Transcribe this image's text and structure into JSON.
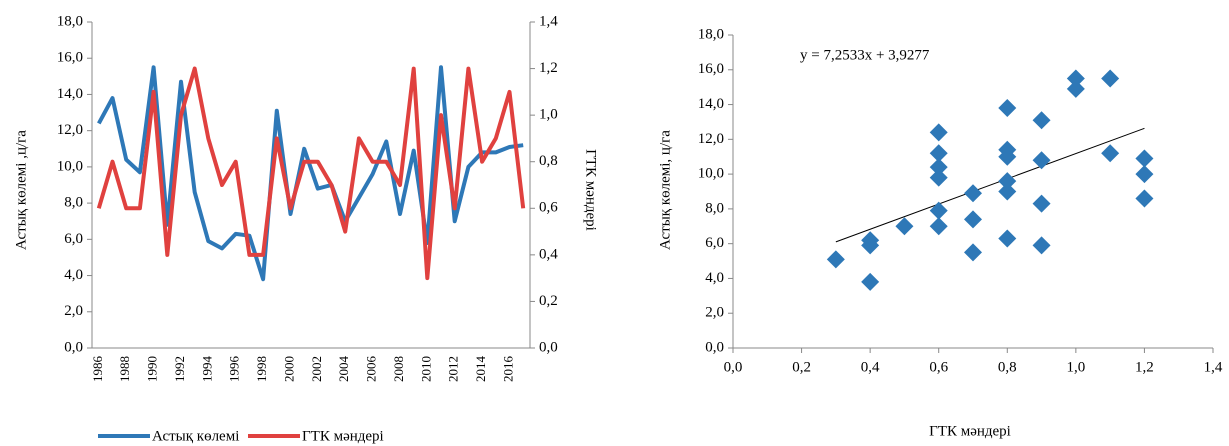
{
  "chart_data": [
    {
      "type": "line",
      "categories": [
        "1986",
        null,
        "1988",
        null,
        "1990",
        null,
        "1992",
        null,
        "1994",
        null,
        "1996",
        null,
        "1998",
        null,
        "2000",
        null,
        "2002",
        null,
        "2004",
        null,
        "2006",
        null,
        "2008",
        null,
        "2010",
        null,
        "2012",
        null,
        "2014",
        null,
        "2016",
        null
      ],
      "series": [
        {
          "name": "Астық көлемі",
          "color": "#2e78b7",
          "values": [
            12.4,
            13.8,
            10.4,
            9.7,
            15.5,
            6.8,
            14.7,
            8.6,
            5.9,
            5.5,
            6.3,
            6.2,
            3.8,
            13.1,
            7.4,
            11.0,
            8.8,
            9.0,
            7.0,
            8.3,
            9.6,
            11.4,
            7.4,
            10.9,
            5.8,
            15.5,
            7.0,
            10.0,
            10.8,
            10.8,
            11.1,
            11.2
          ]
        },
        {
          "name": "ГТК мәндері",
          "color": "#e0413f",
          "axis": "y2",
          "values": [
            0.6,
            0.8,
            0.6,
            0.6,
            1.1,
            0.4,
            1.0,
            1.2,
            0.9,
            0.7,
            0.8,
            0.4,
            0.4,
            0.9,
            0.6,
            0.8,
            0.8,
            0.7,
            0.5,
            0.9,
            0.8,
            0.8,
            0.7,
            1.2,
            0.3,
            1.0,
            0.6,
            1.2,
            0.8,
            0.9,
            1.1,
            0.6
          ]
        }
      ],
      "ylim": [
        0,
        18
      ],
      "yticks": [
        {
          "value": 0,
          "label": "0,0"
        },
        {
          "value": 2,
          "label": "2,0"
        },
        {
          "value": 4,
          "label": "4,0"
        },
        {
          "value": 6,
          "label": "6,0"
        },
        {
          "value": 8,
          "label": "8,0"
        },
        {
          "value": 10,
          "label": "10,0"
        },
        {
          "value": 12,
          "label": "12,0"
        },
        {
          "value": 14,
          "label": "14,0"
        },
        {
          "value": 16,
          "label": "16,0"
        },
        {
          "value": 18,
          "label": "18,0"
        }
      ],
      "y2lim": [
        0,
        1.4
      ],
      "y2ticks": [
        {
          "value": 0,
          "label": "0,0"
        },
        {
          "value": 0.2,
          "label": "0,2"
        },
        {
          "value": 0.4,
          "label": "0,4"
        },
        {
          "value": 0.6,
          "label": "0,6"
        },
        {
          "value": 0.8,
          "label": "0,8"
        },
        {
          "value": 1,
          "label": "1,0"
        },
        {
          "value": 1.2,
          "label": "1,2"
        },
        {
          "value": 1.4,
          "label": "1,4"
        }
      ],
      "ylabel": "Астық көлемі ,ц/га",
      "y2label": "ГТК мәндері",
      "legend": "bottom"
    },
    {
      "type": "scatter",
      "x": [
        0.3,
        0.4,
        0.4,
        0.4,
        0.5,
        0.6,
        0.6,
        0.6,
        0.6,
        0.6,
        0.6,
        0.7,
        0.7,
        0.7,
        0.8,
        0.8,
        0.8,
        0.8,
        0.8,
        0.8,
        0.9,
        0.9,
        0.9,
        0.9,
        1.0,
        1.0,
        1.1,
        1.1,
        1.2,
        1.2,
        1.2
      ],
      "values": [
        5.1,
        6.2,
        5.9,
        3.8,
        7.0,
        12.4,
        11.2,
        10.4,
        9.8,
        7.9,
        7.0,
        8.9,
        7.4,
        5.5,
        13.8,
        11.4,
        11.0,
        9.6,
        9.0,
        6.3,
        13.1,
        10.8,
        8.3,
        5.9,
        15.5,
        14.9,
        15.5,
        11.2,
        10.9,
        10.0,
        8.6
      ],
      "color": "#2e78b7",
      "xlim": [
        0,
        1.4
      ],
      "xticks": [
        {
          "value": 0,
          "label": "0,0"
        },
        {
          "value": 0.2,
          "label": "0,2"
        },
        {
          "value": 0.4,
          "label": "0,4"
        },
        {
          "value": 0.6,
          "label": "0,6"
        },
        {
          "value": 0.8,
          "label": "0,8"
        },
        {
          "value": 1,
          "label": "1,0"
        },
        {
          "value": 1.2,
          "label": "1,2"
        },
        {
          "value": 1.4,
          "label": "1,4"
        }
      ],
      "ylim": [
        0,
        18
      ],
      "yticks": [
        {
          "value": 0,
          "label": "0,0"
        },
        {
          "value": 2,
          "label": "2,0"
        },
        {
          "value": 4,
          "label": "4,0"
        },
        {
          "value": 6,
          "label": "6,0"
        },
        {
          "value": 8,
          "label": "8,0"
        },
        {
          "value": 10,
          "label": "10,0"
        },
        {
          "value": 12,
          "label": "12,0"
        },
        {
          "value": 14,
          "label": "14,0"
        },
        {
          "value": 16,
          "label": "16,0"
        },
        {
          "value": 18,
          "label": "18,0"
        }
      ],
      "xlabel": "ГТК мәндері",
      "ylabel": "Астық көлемі,  ц/га",
      "trendline": {
        "slope": 7.2533,
        "intercept": 3.9277,
        "label": "y = 7,2533x + 3,9277"
      }
    }
  ]
}
